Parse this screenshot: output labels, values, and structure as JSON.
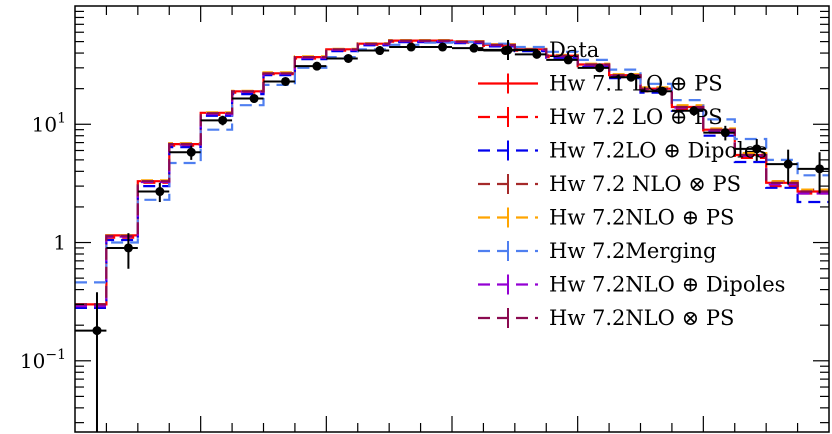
{
  "chart_data": {
    "type": "line",
    "title": "",
    "xlabel": "",
    "ylabel": "",
    "yscale": "log",
    "ylim": [
      0.025,
      100
    ],
    "xlim": [
      0,
      24
    ],
    "grid": false,
    "legend_position": "right",
    "y_tick_labels": [
      {
        "value": 0.1,
        "base": "10",
        "exp": "−1"
      },
      {
        "value": 1,
        "base": "1",
        "exp": ""
      },
      {
        "value": 10,
        "base": "10",
        "exp": "1"
      }
    ],
    "bin_edges": [
      0,
      1,
      2,
      3,
      4,
      5,
      6,
      7,
      8,
      9,
      10,
      11,
      12,
      13,
      14,
      15,
      16,
      17,
      18,
      19,
      20,
      21,
      22,
      23,
      24
    ],
    "data": {
      "name": "Data",
      "color": "#000000",
      "x": [
        0.7,
        1.7,
        2.7,
        3.7,
        4.7,
        5.7,
        6.7,
        7.7,
        8.7,
        9.7,
        10.7,
        11.7,
        12.7,
        13.7,
        14.7,
        15.7,
        16.7,
        17.7,
        18.7,
        19.7,
        20.7,
        21.7,
        22.7,
        23.7
      ],
      "values": [
        0.18,
        0.9,
        2.7,
        5.8,
        10.8,
        16.5,
        23,
        31,
        36,
        42,
        45,
        45,
        44,
        42,
        39,
        35,
        30,
        25,
        19,
        13,
        8.5,
        6.2,
        4.6,
        4.2
      ],
      "err_lo": [
        0.155,
        0.3,
        0.5,
        0.8,
        1.0,
        1.3,
        1.5,
        1.8,
        2.0,
        2.2,
        2.4,
        2.4,
        2.3,
        2.2,
        2.1,
        2.0,
        1.8,
        1.6,
        1.4,
        1.2,
        1.2,
        1.3,
        1.5,
        1.6
      ],
      "err_hi": [
        0.2,
        0.3,
        0.5,
        0.8,
        1.0,
        1.3,
        1.5,
        1.8,
        2.0,
        2.2,
        2.4,
        2.4,
        2.3,
        2.2,
        2.1,
        2.0,
        1.8,
        1.6,
        1.4,
        1.2,
        1.2,
        1.3,
        1.5,
        1.6
      ]
    },
    "series": [
      {
        "name": "Hw 7.1 LO ⊕ PS",
        "color": "#ff0000",
        "dash": "",
        "values": [
          0.3,
          1.15,
          3.3,
          6.8,
          12.5,
          19,
          27,
          37,
          43,
          48,
          51,
          51,
          50,
          47,
          43,
          38,
          32,
          26,
          20,
          14,
          9,
          5.5,
          3.2,
          2.7
        ]
      },
      {
        "name": "Hw 7.2 LO ⊕ PS",
        "color": "#ff0000",
        "dash": "12,7",
        "values": [
          0.3,
          1.1,
          3.2,
          6.6,
          12,
          18.5,
          26.5,
          36,
          42,
          47,
          50,
          50,
          49,
          46,
          42,
          37,
          31,
          25,
          19,
          13.5,
          8.5,
          5.2,
          3.0,
          2.6
        ]
      },
      {
        "name": "Hw 7.2LO ⊕ Dipoles",
        "color": "#0000ee",
        "dash": "12,7",
        "values": [
          0.28,
          1.05,
          3.0,
          6.4,
          11.8,
          18,
          26,
          35.5,
          41.5,
          46.5,
          49.5,
          49.5,
          48.5,
          45.5,
          41.5,
          36.5,
          30.5,
          24.5,
          18.5,
          13,
          8,
          4.8,
          2.9,
          2.2
        ]
      },
      {
        "name": "Hw 7.2 NLO ⊗ PS",
        "color": "#a52a2a",
        "dash": "12,7",
        "values": [
          0.3,
          1.15,
          3.3,
          6.9,
          12.3,
          19,
          27,
          37,
          43,
          48,
          51,
          51,
          50,
          47,
          43,
          38,
          32,
          26,
          20,
          14,
          9,
          5.6,
          3.3,
          2.8
        ]
      },
      {
        "name": "Hw 7.2NLO ⊕ PS",
        "color": "#ffa500",
        "dash": "12,7",
        "values": [
          0.3,
          1.15,
          3.35,
          6.9,
          12.6,
          19.2,
          27.5,
          37.5,
          43.5,
          48.5,
          51.5,
          51.5,
          50.5,
          47.5,
          43.5,
          38.5,
          32.5,
          26.5,
          20.5,
          14.5,
          9.2,
          5.7,
          3.3,
          2.8
        ]
      },
      {
        "name": "Hw 7.2Merging",
        "color": "#4f7ff0",
        "dash": "12,7",
        "values": [
          0.46,
          1.0,
          2.3,
          4.7,
          9.0,
          14.5,
          21.5,
          30,
          37,
          43,
          47,
          49,
          49.5,
          48,
          45,
          41,
          35,
          29,
          22,
          16,
          11,
          7.5,
          5.0,
          3.7
        ]
      },
      {
        "name": "Hw 7.2NLO ⊕ Dipoles",
        "color": "#9400d3",
        "dash": "12,7",
        "values": [
          0.29,
          1.12,
          3.25,
          6.7,
          12.2,
          18.8,
          26.8,
          36.5,
          42.5,
          47.5,
          50.5,
          50.5,
          49.5,
          46.5,
          42.5,
          37.5,
          31.5,
          25.5,
          19.5,
          13.8,
          8.8,
          5.4,
          3.1,
          2.6
        ]
      },
      {
        "name": "Hw 7.2NLO ⊗ PS",
        "color": "#8b0a50",
        "dash": "12,7",
        "values": [
          0.3,
          1.14,
          3.3,
          6.8,
          12.4,
          19,
          27,
          37,
          43,
          48,
          51,
          51,
          50,
          47,
          43,
          38,
          32,
          26,
          20,
          14,
          9,
          5.5,
          3.2,
          2.7
        ]
      }
    ]
  }
}
